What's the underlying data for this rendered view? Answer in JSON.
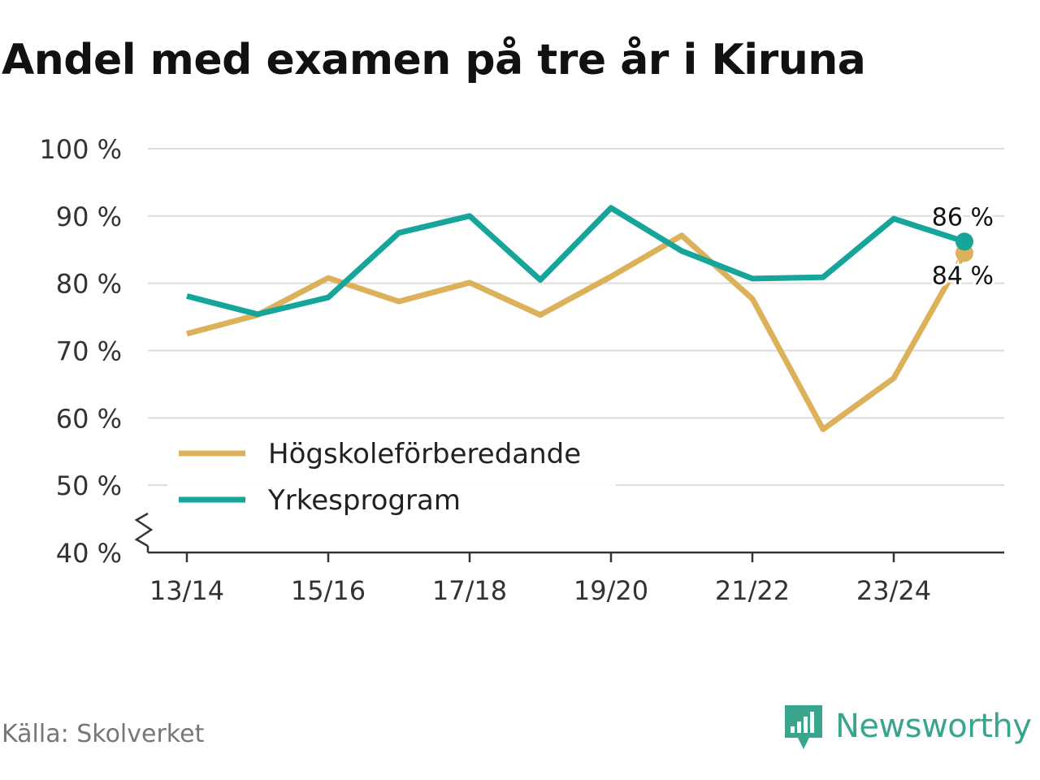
{
  "title": "Andel med examen på tre år i Kiruna",
  "source": "Källa: Skolverket",
  "brand": "Newsworthy",
  "colors": {
    "hogskole": "#ddb05a",
    "yrkes": "#16a59b",
    "grid": "#dddddd",
    "axis": "#333333",
    "text": "#333333"
  },
  "chart_data": {
    "type": "line",
    "x": [
      "13/14",
      "14/15",
      "15/16",
      "16/17",
      "17/18",
      "18/19",
      "19/20",
      "20/21",
      "21/22",
      "22/23",
      "23/24",
      "24/25"
    ],
    "xticks": [
      "13/14",
      "15/16",
      "17/18",
      "19/20",
      "21/22",
      "23/24"
    ],
    "yticks": [
      "40 %",
      "50 %",
      "60 %",
      "70 %",
      "80 %",
      "90 %",
      "100 %"
    ],
    "ylim": [
      40,
      100
    ],
    "series": [
      {
        "name": "Högskoleförberedande",
        "color": "#ddb05a",
        "values": [
          72.5,
          75.3,
          80.8,
          77.3,
          80.1,
          75.3,
          81.0,
          87.1,
          77.7,
          58.3,
          65.9,
          84.5
        ],
        "end_label": "84 %"
      },
      {
        "name": "Yrkesprogram",
        "color": "#16a59b",
        "values": [
          78.1,
          75.4,
          77.9,
          87.5,
          90.0,
          80.5,
          91.2,
          84.8,
          80.7,
          80.9,
          89.6,
          86.2
        ],
        "end_label": "86 %"
      }
    ],
    "title": "Andel med examen på tre år i Kiruna",
    "xlabel": "",
    "ylabel": "",
    "grid": true,
    "legend": "bottom-left"
  }
}
